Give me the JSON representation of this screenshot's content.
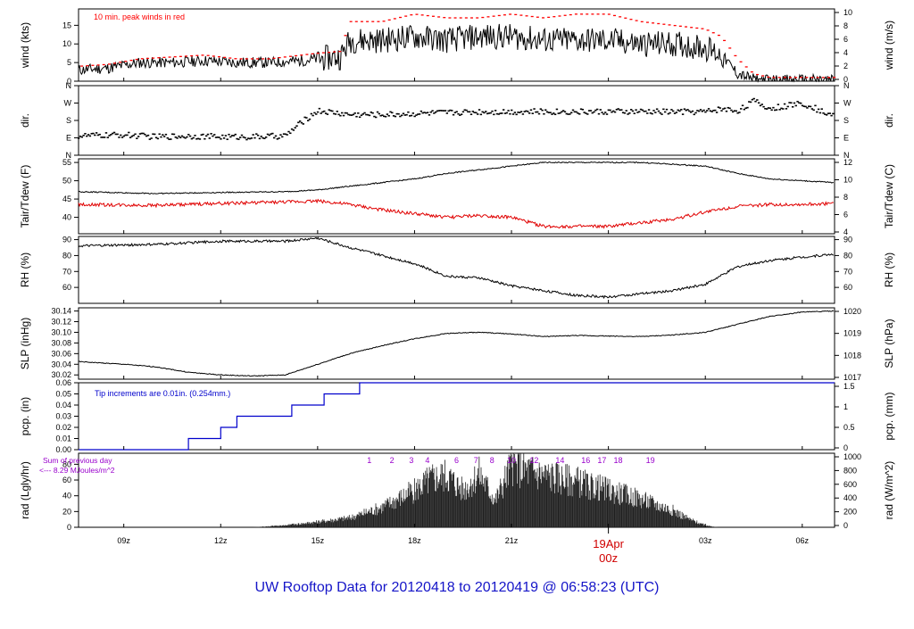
{
  "title": "UW Rooftop Data for 20120418  to  20120419 @ 06:58:23  (UTC)",
  "colors": {
    "title": "#1515c8",
    "peak": "#ff0000",
    "tdew": "#e00000",
    "precip": "#0000cc",
    "annot": "#9900cc",
    "midnight": "#d00000",
    "line": "#000000"
  },
  "x_axis": {
    "ticks": [
      {
        "hour": 9,
        "label": "09z"
      },
      {
        "hour": 12,
        "label": "12z"
      },
      {
        "hour": 15,
        "label": "15z"
      },
      {
        "hour": 18,
        "label": "18z"
      },
      {
        "hour": 21,
        "label": "21z"
      },
      {
        "hour": 27,
        "label": "03z"
      },
      {
        "hour": 30,
        "label": "06z"
      }
    ],
    "midnight": {
      "hour": 24,
      "date": "19Apr",
      "label": "00z"
    },
    "range": [
      7.6,
      31.0
    ]
  },
  "panels": {
    "wind": {
      "ylabel": "wind (kts)",
      "y2label": "wind (m/s)",
      "ticks": [
        "0",
        "5",
        "10",
        "15"
      ],
      "tick_values": [
        0,
        5,
        10,
        15
      ],
      "ylim": [
        0,
        19.4
      ],
      "ticks2": [
        "0",
        "2",
        "4",
        "6",
        "8",
        "10"
      ],
      "tick2_values": [
        0,
        2,
        4,
        6,
        8,
        10
      ],
      "note": "10 min. peak winds in red"
    },
    "dir": {
      "ylabel": "dir.",
      "y2label": "dir.",
      "ticks": [
        "N",
        "E",
        "S",
        "W",
        "N"
      ],
      "tick_values": [
        0,
        90,
        180,
        270,
        360
      ],
      "ylim": [
        0,
        360
      ]
    },
    "temp": {
      "ylabel": "Tair/Tdew (F)",
      "y2label": "Tair/Tdew (C)",
      "ticks": [
        "40",
        "45",
        "50",
        "55"
      ],
      "tick_values": [
        40,
        45,
        50,
        55
      ],
      "ylim": [
        35.5,
        56
      ],
      "ticks2": [
        "4",
        "6",
        "8",
        "10",
        "12"
      ],
      "tick2_values": [
        4,
        6,
        8,
        10,
        12
      ]
    },
    "rh": {
      "ylabel": "RH (%)",
      "y2label": "RH (%)",
      "ticks": [
        "60",
        "70",
        "80",
        "90"
      ],
      "tick_values": [
        60,
        70,
        80,
        90
      ],
      "ylim": [
        50,
        92
      ]
    },
    "slp": {
      "ylabel": "SLP (inHg)",
      "y2label": "SLP (hPa)",
      "ticks": [
        "30.02",
        "30.04",
        "30.06",
        "30.08",
        "30.10",
        "30.12",
        "30.14"
      ],
      "tick_values": [
        30.02,
        30.04,
        30.06,
        30.08,
        30.1,
        30.12,
        30.14
      ],
      "ylim": [
        30.012,
        30.146
      ],
      "ticks2": [
        "1017",
        "1018",
        "1019",
        "1020"
      ],
      "tick2_values": [
        1017,
        1018,
        1019,
        1020
      ]
    },
    "pcp": {
      "ylabel": "pcp. (in)",
      "y2label": "pcp. (mm)",
      "ticks": [
        "0.00",
        "0.01",
        "0.02",
        "0.03",
        "0.04",
        "0.05",
        "0.06"
      ],
      "tick_values": [
        0,
        0.01,
        0.02,
        0.03,
        0.04,
        0.05,
        0.06
      ],
      "ylim": [
        0,
        0.06
      ],
      "ticks2": [
        "0",
        "0.5",
        "1",
        "1.5"
      ],
      "tick2_values": [
        0,
        0.5,
        1,
        1.5
      ],
      "note": "Tip increments are 0.01in. (0.254mm.)"
    },
    "rad": {
      "ylabel": "rad (Lgly/hr)",
      "y2label": "rad (W/m^2)",
      "ticks": [
        "0",
        "20",
        "40",
        "60",
        "80"
      ],
      "tick_values": [
        0,
        20,
        40,
        60,
        80
      ],
      "ylim": [
        0,
        94
      ],
      "ticks2": [
        "0",
        "200",
        "400",
        "600",
        "800",
        "1000"
      ],
      "tick2_values": [
        0,
        200,
        400,
        600,
        800,
        1000
      ],
      "note1": "Sum of previous day",
      "note2": "<--- 8.29 MJoules/m^2",
      "markers": [
        "1",
        "2",
        "3",
        "4",
        "6",
        "7",
        "8",
        "10",
        "12",
        "14",
        "16",
        "17",
        "18",
        "19"
      ]
    }
  },
  "chart_data": [
    {
      "type": "line",
      "title": "",
      "ylabel": "wind (kts)",
      "series": [
        {
          "values_hour": [
            7.6,
            8.5,
            9.5,
            10.5,
            11.5,
            12.5,
            13.5,
            14.5,
            15.0,
            15.7,
            16.0,
            17.0,
            18.0,
            19.0,
            20.0,
            21.0,
            22.0,
            23.0,
            24.0,
            25.0,
            26.0,
            27.0,
            27.5,
            28.0,
            28.5,
            29.0,
            30.0,
            31.0
          ],
          "values": [
            3,
            3.5,
            5,
            5,
            5.5,
            5,
            5,
            5.5,
            6,
            6.5,
            11,
            11,
            12,
            11,
            12,
            12,
            11,
            11,
            11,
            10,
            10,
            9,
            7,
            2,
            0.5,
            0.3,
            0.3,
            0.3
          ]
        },
        {
          "name": "10 min. peak winds",
          "values_hour": [
            7.6,
            8.5,
            9.5,
            10.5,
            11.5,
            12.5,
            13.5,
            14.5,
            15.0,
            15.7,
            16.0,
            17.0,
            18.0,
            19.0,
            20.0,
            21.0,
            22.0,
            23.0,
            24.0,
            25.0,
            26.0,
            27.0,
            27.5,
            28.0,
            28.5,
            29.0,
            30.0,
            31.0
          ],
          "values": [
            4,
            4.5,
            6,
            6.5,
            7,
            6,
            6,
            7,
            7.5,
            8,
            16,
            16,
            18,
            17,
            17,
            18,
            17,
            18,
            18,
            16,
            15,
            14,
            12,
            6,
            2,
            1,
            1,
            1
          ]
        }
      ],
      "ylim": [
        0,
        19.4
      ]
    },
    {
      "type": "scatter",
      "title": "",
      "ylabel": "dir.",
      "series": [
        {
          "values_hour": [
            7.6,
            9.0,
            10.0,
            11.0,
            12.0,
            13.0,
            14.0,
            14.5,
            15.0,
            16.0,
            17.0,
            18.0,
            19.0,
            20.0,
            21.0,
            22.0,
            23.0,
            24.0,
            25.0,
            26.0,
            27.0,
            27.5,
            28.0,
            28.5,
            29.0,
            30.0,
            31.0
          ],
          "values": [
            100,
            105,
            95,
            100,
            95,
            95,
            100,
            170,
            230,
            210,
            210,
            215,
            220,
            225,
            225,
            225,
            225,
            225,
            225,
            225,
            225,
            240,
            230,
            280,
            240,
            270,
            200
          ]
        }
      ],
      "ylim": [
        0,
        360
      ]
    },
    {
      "type": "line",
      "title": "",
      "ylabel": "Tair/Tdew (F)",
      "series": [
        {
          "name": "Tair",
          "values_hour": [
            7.6,
            10.0,
            12.0,
            14.0,
            15.0,
            16.0,
            17.0,
            18.0,
            19.0,
            20.0,
            21.0,
            22.0,
            23.0,
            24.0,
            25.0,
            26.0,
            27.0,
            28.0,
            29.0,
            30.0,
            31.0
          ],
          "values": [
            47,
            46.5,
            46.8,
            47,
            47.5,
            48.5,
            49.5,
            50.5,
            52,
            53,
            54,
            55,
            55,
            55,
            55,
            54.5,
            54,
            52,
            50.5,
            50,
            49.5
          ]
        },
        {
          "name": "Tdew",
          "values_hour": [
            7.6,
            10.0,
            12.0,
            14.0,
            15.0,
            16.0,
            17.0,
            18.0,
            19.0,
            20.0,
            21.0,
            22.0,
            23.0,
            24.0,
            25.0,
            26.0,
            27.0,
            28.0,
            29.0,
            30.0,
            31.0
          ],
          "values": [
            43.5,
            43.3,
            43.8,
            44.2,
            44.5,
            43.5,
            42,
            41,
            40,
            40.5,
            40,
            37.5,
            37.5,
            37.5,
            38.5,
            39.5,
            41.5,
            43,
            43.5,
            43.5,
            43.8
          ]
        }
      ],
      "ylim": [
        35.5,
        56
      ]
    },
    {
      "type": "line",
      "title": "",
      "ylabel": "RH (%)",
      "series": [
        {
          "values_hour": [
            7.6,
            10.0,
            12.0,
            14.0,
            15.0,
            16.0,
            17.0,
            18.0,
            19.0,
            20.0,
            21.0,
            22.0,
            23.0,
            24.0,
            25.0,
            26.0,
            27.0,
            28.0,
            29.0,
            30.0,
            31.0
          ],
          "values": [
            86,
            87,
            89,
            89,
            91,
            85,
            80,
            75,
            67,
            66,
            61,
            58,
            55,
            54,
            56,
            58,
            62,
            73,
            77,
            79,
            81
          ]
        }
      ],
      "ylim": [
        50,
        92
      ]
    },
    {
      "type": "line",
      "title": "",
      "ylabel": "SLP (inHg)",
      "series": [
        {
          "values_hour": [
            7.6,
            9.0,
            10.0,
            11.0,
            12.0,
            13.0,
            14.0,
            15.0,
            16.0,
            17.0,
            18.0,
            19.0,
            20.0,
            21.0,
            22.0,
            23.0,
            24.0,
            25.0,
            26.0,
            27.0,
            28.0,
            29.0,
            30.0,
            31.0
          ],
          "values": [
            30.045,
            30.04,
            30.035,
            30.025,
            30.02,
            30.018,
            30.02,
            30.04,
            30.06,
            30.075,
            30.088,
            30.098,
            30.1,
            30.097,
            30.092,
            30.094,
            30.093,
            30.092,
            30.095,
            30.1,
            30.115,
            30.13,
            30.138,
            30.14
          ]
        }
      ],
      "ylim": [
        30.012,
        30.146
      ]
    },
    {
      "type": "line",
      "title": "",
      "ylabel": "pcp. (in)",
      "series": [
        {
          "values_hour": [
            7.6,
            11.0,
            11.0,
            12.0,
            12.0,
            12.5,
            12.5,
            14.2,
            14.2,
            15.2,
            15.2,
            16.3,
            16.3,
            31.0
          ],
          "values": [
            0,
            0,
            0.01,
            0.01,
            0.02,
            0.02,
            0.03,
            0.03,
            0.04,
            0.04,
            0.05,
            0.05,
            0.06,
            0.06
          ]
        }
      ],
      "ylim": [
        0,
        0.06
      ]
    },
    {
      "type": "area",
      "title": "",
      "ylabel": "rad (Lgly/hr)",
      "series": [
        {
          "values_hour": [
            7.6,
            13.0,
            14.0,
            15.0,
            16.0,
            17.0,
            18.0,
            18.5,
            19.0,
            19.5,
            20.0,
            20.5,
            21.0,
            22.0,
            23.0,
            24.0,
            25.0,
            26.0,
            26.5,
            27.0,
            27.4,
            31.0
          ],
          "values": [
            0,
            0,
            3,
            8,
            14,
            30,
            55,
            72,
            78,
            55,
            80,
            40,
            92,
            78,
            68,
            55,
            42,
            25,
            12,
            3,
            0,
            0
          ]
        }
      ],
      "ylim": [
        0,
        94
      ]
    }
  ]
}
